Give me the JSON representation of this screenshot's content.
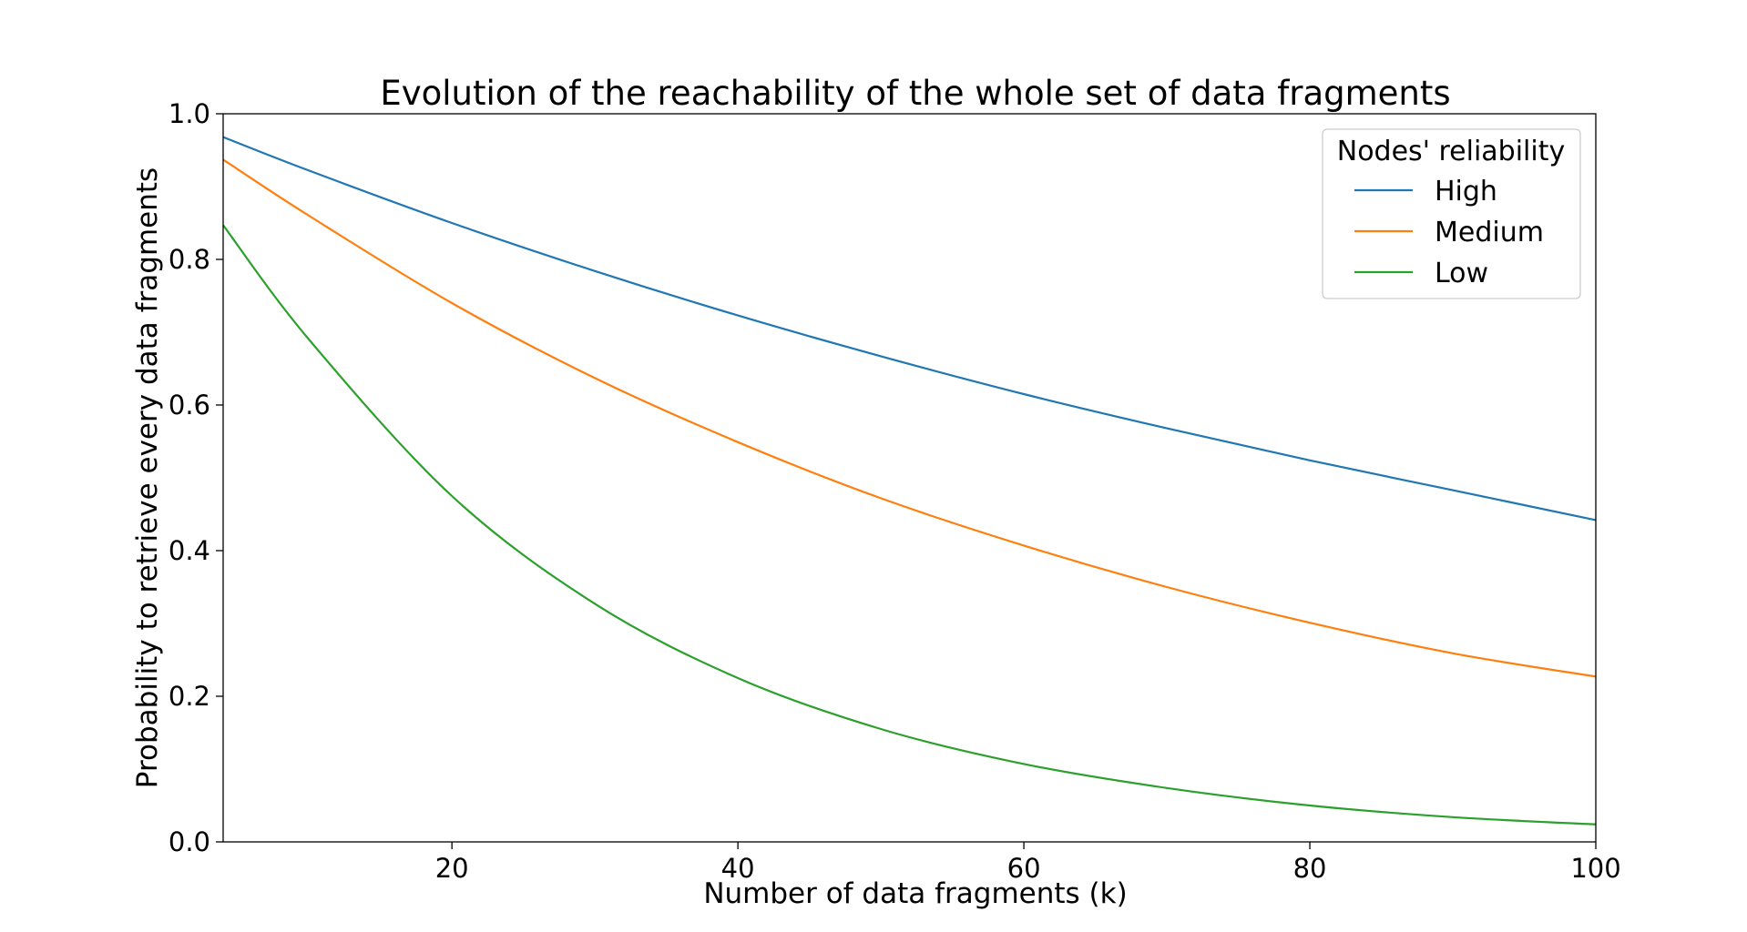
{
  "chart_data": {
    "type": "line",
    "title": "Evolution of the reachability of the whole set of data fragments",
    "xlabel": "Number of data fragments (k)",
    "ylabel": "Probability to retrieve every data fragments",
    "xlim": [
      4,
      100
    ],
    "ylim": [
      0.0,
      1.0
    ],
    "xticks": [
      20,
      40,
      60,
      80,
      100
    ],
    "yticks": [
      0.0,
      0.2,
      0.4,
      0.6,
      0.8,
      1.0
    ],
    "xtick_labels": [
      "20",
      "40",
      "60",
      "80",
      "100"
    ],
    "ytick_labels": [
      "0.0",
      "0.2",
      "0.4",
      "0.6",
      "0.8",
      "1.0"
    ],
    "grid": false,
    "legend": {
      "title": "Nodes' reliability",
      "placement": "top-right"
    },
    "x": [
      4,
      10,
      20,
      30,
      40,
      50,
      60,
      70,
      80,
      90,
      100
    ],
    "series": [
      {
        "name": "High",
        "color": "#1f77b4",
        "values": [
          0.968,
          0.922,
          0.85,
          0.784,
          0.723,
          0.667,
          0.615,
          0.568,
          0.524,
          0.483,
          0.442
        ]
      },
      {
        "name": "Medium",
        "color": "#ff7f0e",
        "values": [
          0.937,
          0.86,
          0.74,
          0.637,
          0.549,
          0.472,
          0.407,
          0.35,
          0.301,
          0.259,
          0.227
        ]
      },
      {
        "name": "Low",
        "color": "#2ca02c",
        "values": [
          0.847,
          0.69,
          0.475,
          0.327,
          0.225,
          0.155,
          0.107,
          0.074,
          0.05,
          0.034,
          0.024
        ]
      }
    ]
  }
}
